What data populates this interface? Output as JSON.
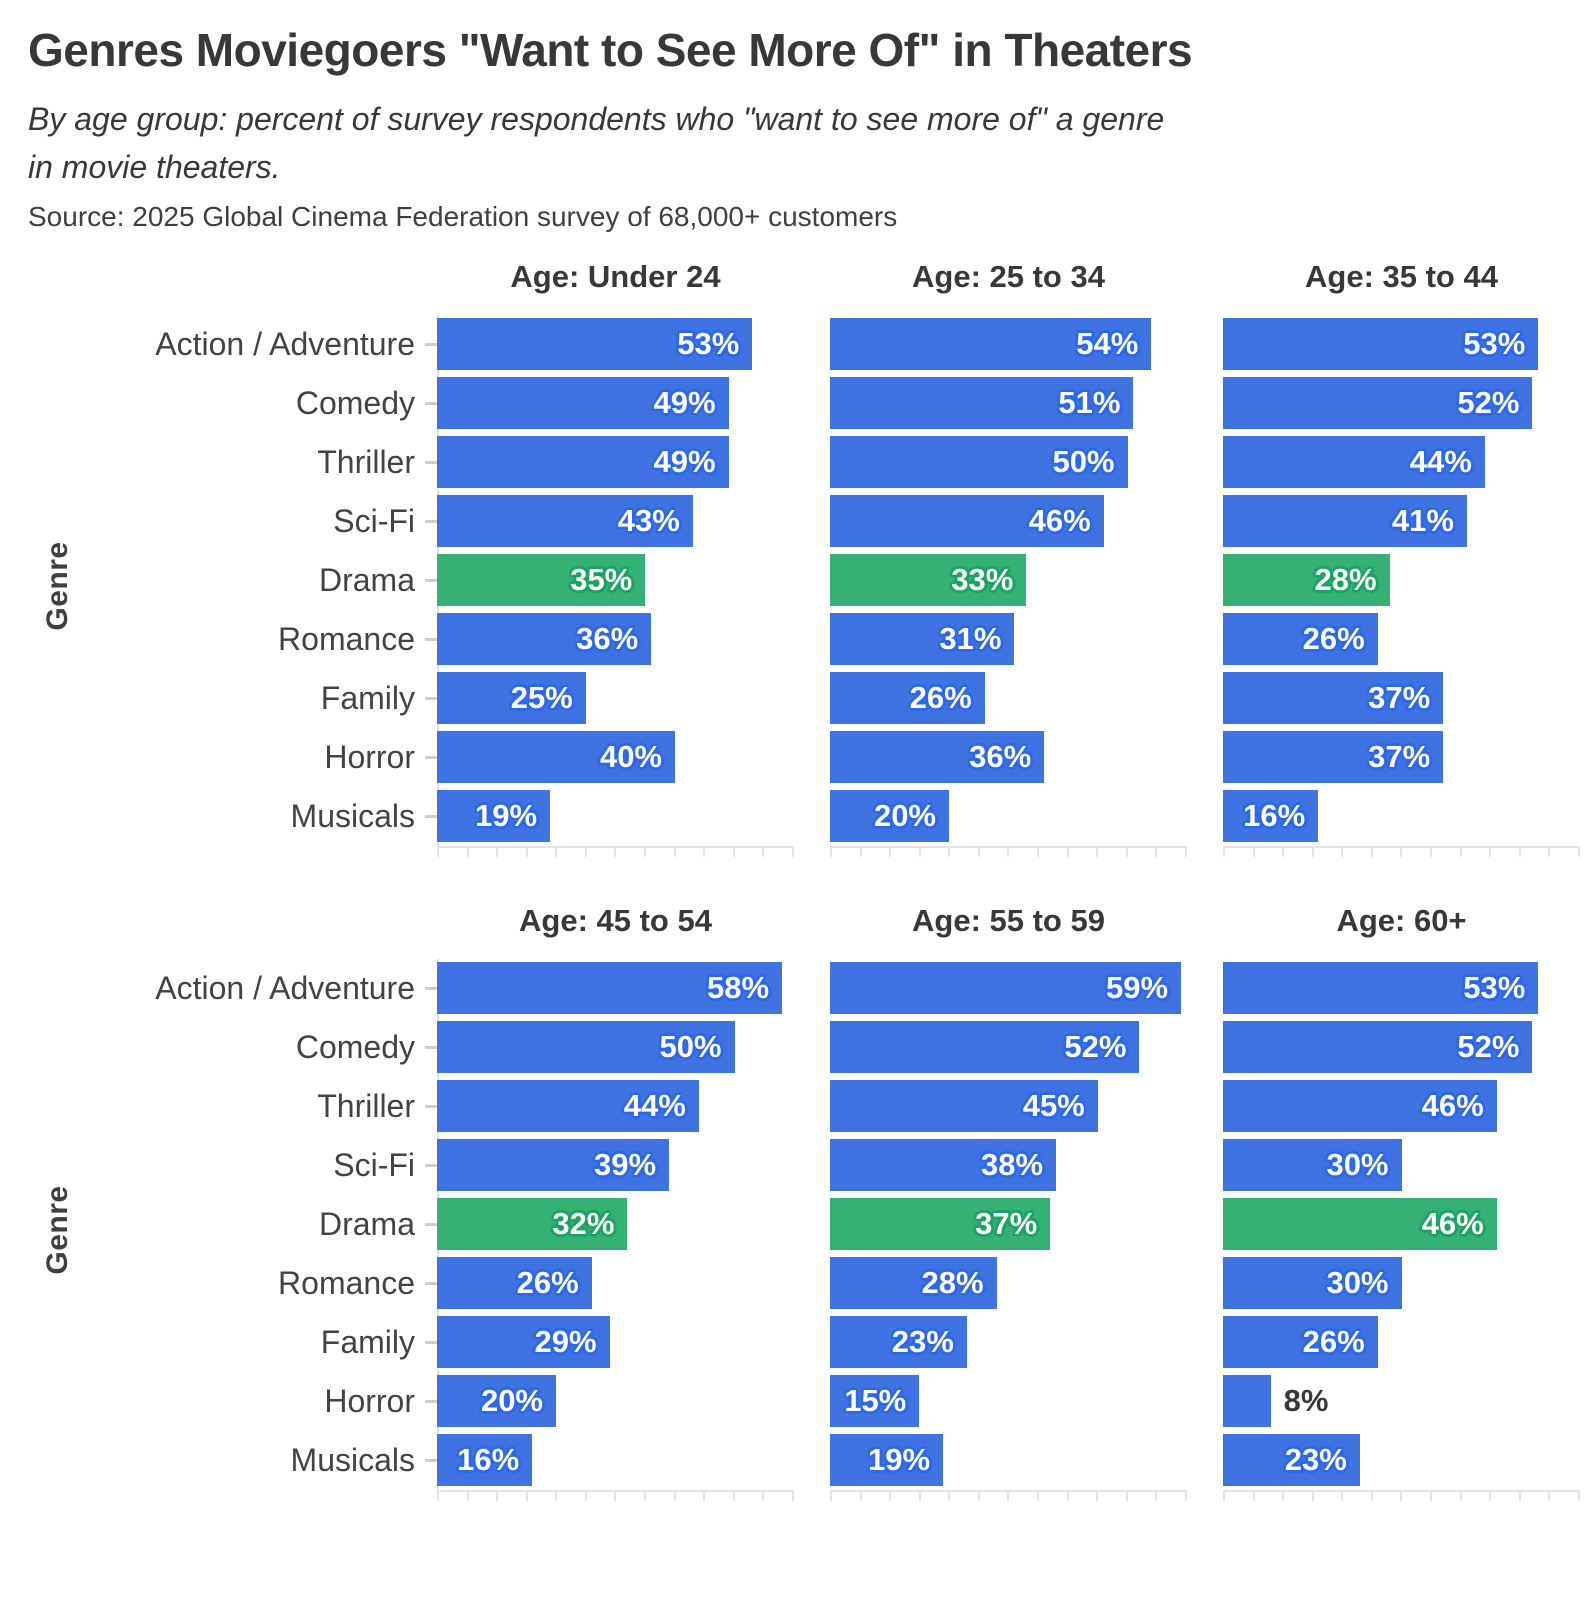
{
  "title": "Genres Moviegoers \"Want to See More Of\" in Theaters",
  "subtitle": {
    "line1": "By age group: percent of survey respondents who \"want to see more of\" a genre",
    "line2": "in movie theaters."
  },
  "source": "Source: 2025 Global Cinema Federation survey of 68,000+ customers",
  "y_axis_label": "Genre",
  "colors": {
    "bar_blue": "#3e73e1",
    "bar_blue_label_glow": "#2d68e8",
    "bar_green_highlight": "#35b176",
    "bar_green_label_glow": "#1aa362",
    "axis_gray": "#e4e4e4",
    "genre_dash_gray": "#cfcfcf",
    "text_dark": "#383838",
    "genre_label_gray": "#434343",
    "outside_label_dark": "#383838",
    "bar_label_white": "#ffffff"
  },
  "chart_data": {
    "type": "bar",
    "orientation": "horizontal",
    "small_multiples": true,
    "grid": false,
    "xlim": [
      0,
      60
    ],
    "tick_step": 5,
    "value_suffix": "%",
    "categories": [
      "Action / Adventure",
      "Comedy",
      "Thriller",
      "Sci-Fi",
      "Drama",
      "Romance",
      "Family",
      "Horror",
      "Musicals"
    ],
    "highlight_category": "Drama",
    "panels": [
      {
        "label": "Age: Under 24",
        "values": [
          53,
          49,
          49,
          43,
          35,
          36,
          25,
          40,
          19
        ]
      },
      {
        "label": "Age: 25 to 34",
        "values": [
          54,
          51,
          50,
          46,
          33,
          31,
          26,
          36,
          20
        ]
      },
      {
        "label": "Age: 35 to 44",
        "values": [
          53,
          52,
          44,
          41,
          28,
          26,
          37,
          37,
          16
        ]
      },
      {
        "label": "Age: 45 to 54",
        "values": [
          58,
          50,
          44,
          39,
          32,
          26,
          29,
          20,
          16
        ]
      },
      {
        "label": "Age: 55 to 59",
        "values": [
          59,
          52,
          45,
          38,
          37,
          28,
          23,
          15,
          19
        ]
      },
      {
        "label": "Age: 60+",
        "values": [
          53,
          52,
          46,
          30,
          46,
          30,
          26,
          8,
          23
        ]
      }
    ]
  }
}
